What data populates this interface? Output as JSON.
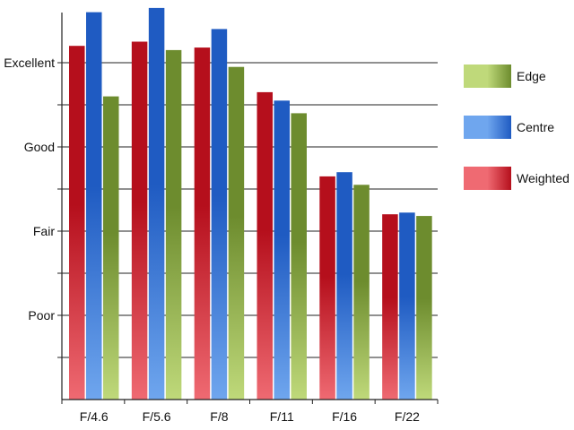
{
  "chart_data": {
    "type": "bar",
    "title": "",
    "xlabel": "",
    "ylabel": "",
    "categories": [
      "F/4.6",
      "F/5.6",
      "F/8",
      "F/11",
      "F/16",
      "F/22"
    ],
    "y_tick_labels": [
      {
        "label": "Poor",
        "value": 1
      },
      {
        "label": "Fair",
        "value": 2
      },
      {
        "label": "Good",
        "value": 3
      },
      {
        "label": "Excellent",
        "value": 4
      }
    ],
    "ylim": [
      0,
      4.65
    ],
    "grid": "horizontal",
    "legend_position": "right",
    "series": [
      {
        "name": "Weighted",
        "values": [
          4.2,
          4.25,
          4.18,
          3.65,
          2.65,
          2.2
        ],
        "colors": {
          "top": "#b50f1c",
          "bottom": "#ef6a72"
        }
      },
      {
        "name": "Centre",
        "values": [
          4.6,
          4.65,
          4.4,
          3.55,
          2.7,
          2.22
        ],
        "colors": {
          "top": "#1f5bc2",
          "bottom": "#6fa6ee"
        }
      },
      {
        "name": "Edge",
        "values": [
          3.6,
          4.15,
          3.95,
          3.4,
          2.55,
          2.18
        ],
        "colors": {
          "top": "#6d8c2e",
          "bottom": "#bfd97a"
        }
      }
    ],
    "legend_order": [
      "Edge",
      "Centre",
      "Weighted"
    ]
  }
}
